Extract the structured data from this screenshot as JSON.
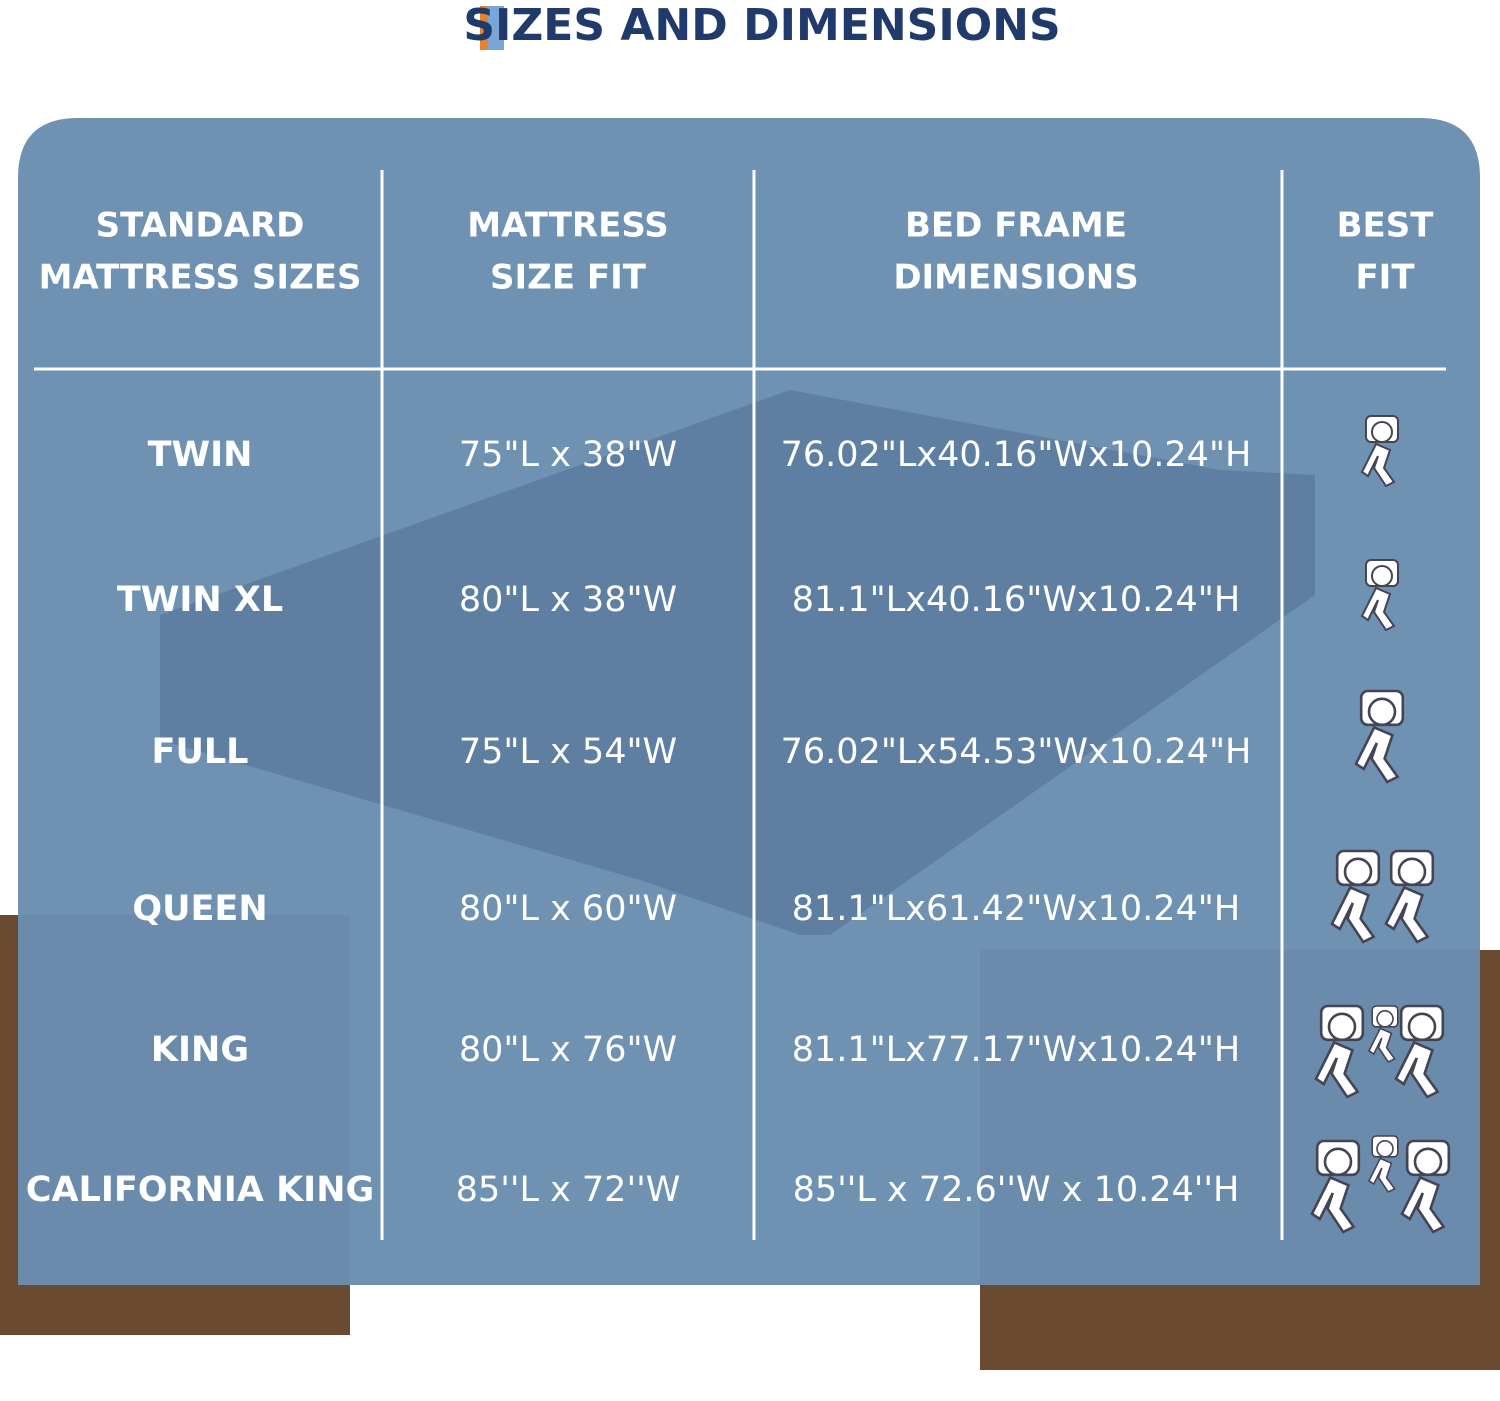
{
  "title": "SIZES AND DIMENSIONS",
  "table": {
    "headers": [
      [
        "STANDARD",
        "MATTRESS SIZES"
      ],
      [
        "MATTRESS",
        "SIZE FIT"
      ],
      [
        "BED FRAME",
        "DIMENSIONS"
      ],
      [
        "BEST",
        "FIT"
      ]
    ],
    "rows": [
      [
        "TWIN",
        "75\"L x 38\"W",
        "76.02\"Lx40.16\"Wx10.24\"H"
      ],
      [
        "TWIN XL",
        "80\"L x 38\"W",
        "81.1\"Lx40.16\"Wx10.24\"H"
      ],
      [
        "FULL",
        "75\"L x 54\"W",
        "76.02\"Lx54.53\"Wx10.24\"H"
      ],
      [
        "QUEEN",
        "80\"L x 60\"W",
        "81.1\"Lx61.42\"Wx10.24\"H"
      ],
      [
        "KING",
        "80\"L x 76\"W",
        "81.1\"Lx77.17\"Wx10.24\"H"
      ],
      [
        "CALIFORNIA KING",
        "85''L x 72''W",
        "85''L x 72.6''W x 10.24''H"
      ]
    ]
  }
}
